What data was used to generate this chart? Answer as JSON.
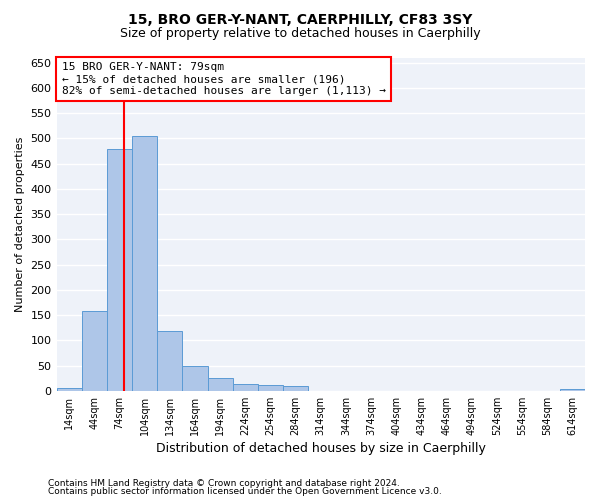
{
  "title": "15, BRO GER-Y-NANT, CAERPHILLY, CF83 3SY",
  "subtitle": "Size of property relative to detached houses in Caerphilly",
  "xlabel": "Distribution of detached houses by size in Caerphilly",
  "ylabel": "Number of detached properties",
  "categories": [
    "14sqm",
    "44sqm",
    "74sqm",
    "104sqm",
    "134sqm",
    "164sqm",
    "194sqm",
    "224sqm",
    "254sqm",
    "284sqm",
    "314sqm",
    "344sqm",
    "374sqm",
    "404sqm",
    "434sqm",
    "464sqm",
    "494sqm",
    "524sqm",
    "554sqm",
    "584sqm",
    "614sqm"
  ],
  "values": [
    5,
    158,
    478,
    504,
    119,
    50,
    25,
    14,
    12,
    10,
    0,
    0,
    0,
    0,
    0,
    0,
    0,
    0,
    0,
    0,
    3
  ],
  "bar_color": "#aec6e8",
  "bar_edge_color": "#5b9bd5",
  "bar_width": 1.0,
  "vline_color": "red",
  "annotation_line1": "15 BRO GER-Y-NANT: 79sqm",
  "annotation_line2": "← 15% of detached houses are smaller (196)",
  "annotation_line3": "82% of semi-detached houses are larger (1,113) →",
  "ylim": [
    0,
    660
  ],
  "yticks": [
    0,
    50,
    100,
    150,
    200,
    250,
    300,
    350,
    400,
    450,
    500,
    550,
    600,
    650
  ],
  "footer_line1": "Contains HM Land Registry data © Crown copyright and database right 2024.",
  "footer_line2": "Contains public sector information licensed under the Open Government Licence v3.0.",
  "bg_color": "#eef2f9",
  "grid_color": "#ffffff",
  "title_fontsize": 10,
  "subtitle_fontsize": 9,
  "annotation_fontsize": 8
}
